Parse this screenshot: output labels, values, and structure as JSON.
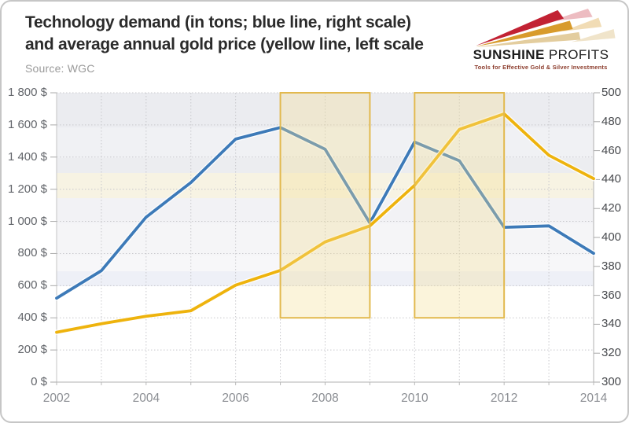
{
  "header": {
    "title_line1": "Technology demand (in tons;  blue line, right scale)",
    "title_line2": "and average annual gold price (yellow line, left scale",
    "source": "Source: WGC"
  },
  "logo": {
    "brand_bold": "SUNSHINE",
    "brand_light": " PROFITS",
    "tagline": "Tools for Effective Gold & Silver Investments",
    "rays_icon": "sun-rays-icon"
  },
  "colors": {
    "demand_line": "#3D7AB8",
    "gold_line": "#EEB30D",
    "band_fill": "#F3DE96",
    "band_border": "#E2B94E",
    "grid_line": "#c8c8cc",
    "axis_line": "#b0b0b0",
    "logo_red": "#C22233",
    "logo_gold": "#D89B2C",
    "logo_tan": "#E3CD9E"
  },
  "chart_data": {
    "type": "line",
    "title": "Technology demand (in tons; blue line, right scale) and average annual gold price (yellow line, left scale)",
    "x": [
      2002,
      2003,
      2004,
      2005,
      2006,
      2007,
      2008,
      2009,
      2010,
      2011,
      2012,
      2013,
      2014
    ],
    "series": [
      {
        "name": "Technology demand (tons)",
        "axis": "right",
        "color_key": "demand_line",
        "values": [
          358,
          377,
          414,
          438,
          468,
          476,
          461,
          410,
          466,
          453,
          407,
          408,
          389
        ]
      },
      {
        "name": "Average annual gold price ($)",
        "axis": "left",
        "color_key": "gold_line",
        "values": [
          310,
          363,
          410,
          444,
          603,
          695,
          872,
          972,
          1225,
          1572,
          1669,
          1411,
          1266
        ]
      }
    ],
    "left_axis": {
      "min": 0,
      "max": 1800,
      "step": 200,
      "tick_values": [
        1800,
        1600,
        1400,
        1200,
        1000,
        800,
        600,
        400,
        200,
        0
      ],
      "tick_labels": [
        "1 800 $",
        "1 600 $",
        "1 400 $",
        "1 200 $",
        "1 000 $",
        "800 $",
        "600 $",
        "400 $",
        "200 $",
        "0 $"
      ]
    },
    "right_axis": {
      "min": 300,
      "max": 500,
      "step": 20,
      "tick_values": [
        500,
        480,
        460,
        440,
        420,
        400,
        380,
        360,
        340,
        320,
        300
      ],
      "tick_labels": [
        "500",
        "480",
        "460",
        "440",
        "420",
        "400",
        "380",
        "360",
        "340",
        "320",
        "300"
      ]
    },
    "x_ticks": {
      "values": [
        2002,
        2004,
        2006,
        2008,
        2010,
        2012,
        2014
      ],
      "labels": [
        "2002",
        "2004",
        "2006",
        "2008",
        "2010",
        "2012",
        "2014"
      ]
    },
    "highlight_bands": [
      {
        "from_year": 2007,
        "to_year": 2009,
        "bottom_value_left_scale": 400
      },
      {
        "from_year": 2010,
        "to_year": 2012,
        "bottom_value_left_scale": 400
      }
    ],
    "grid": true,
    "legend": "none"
  }
}
